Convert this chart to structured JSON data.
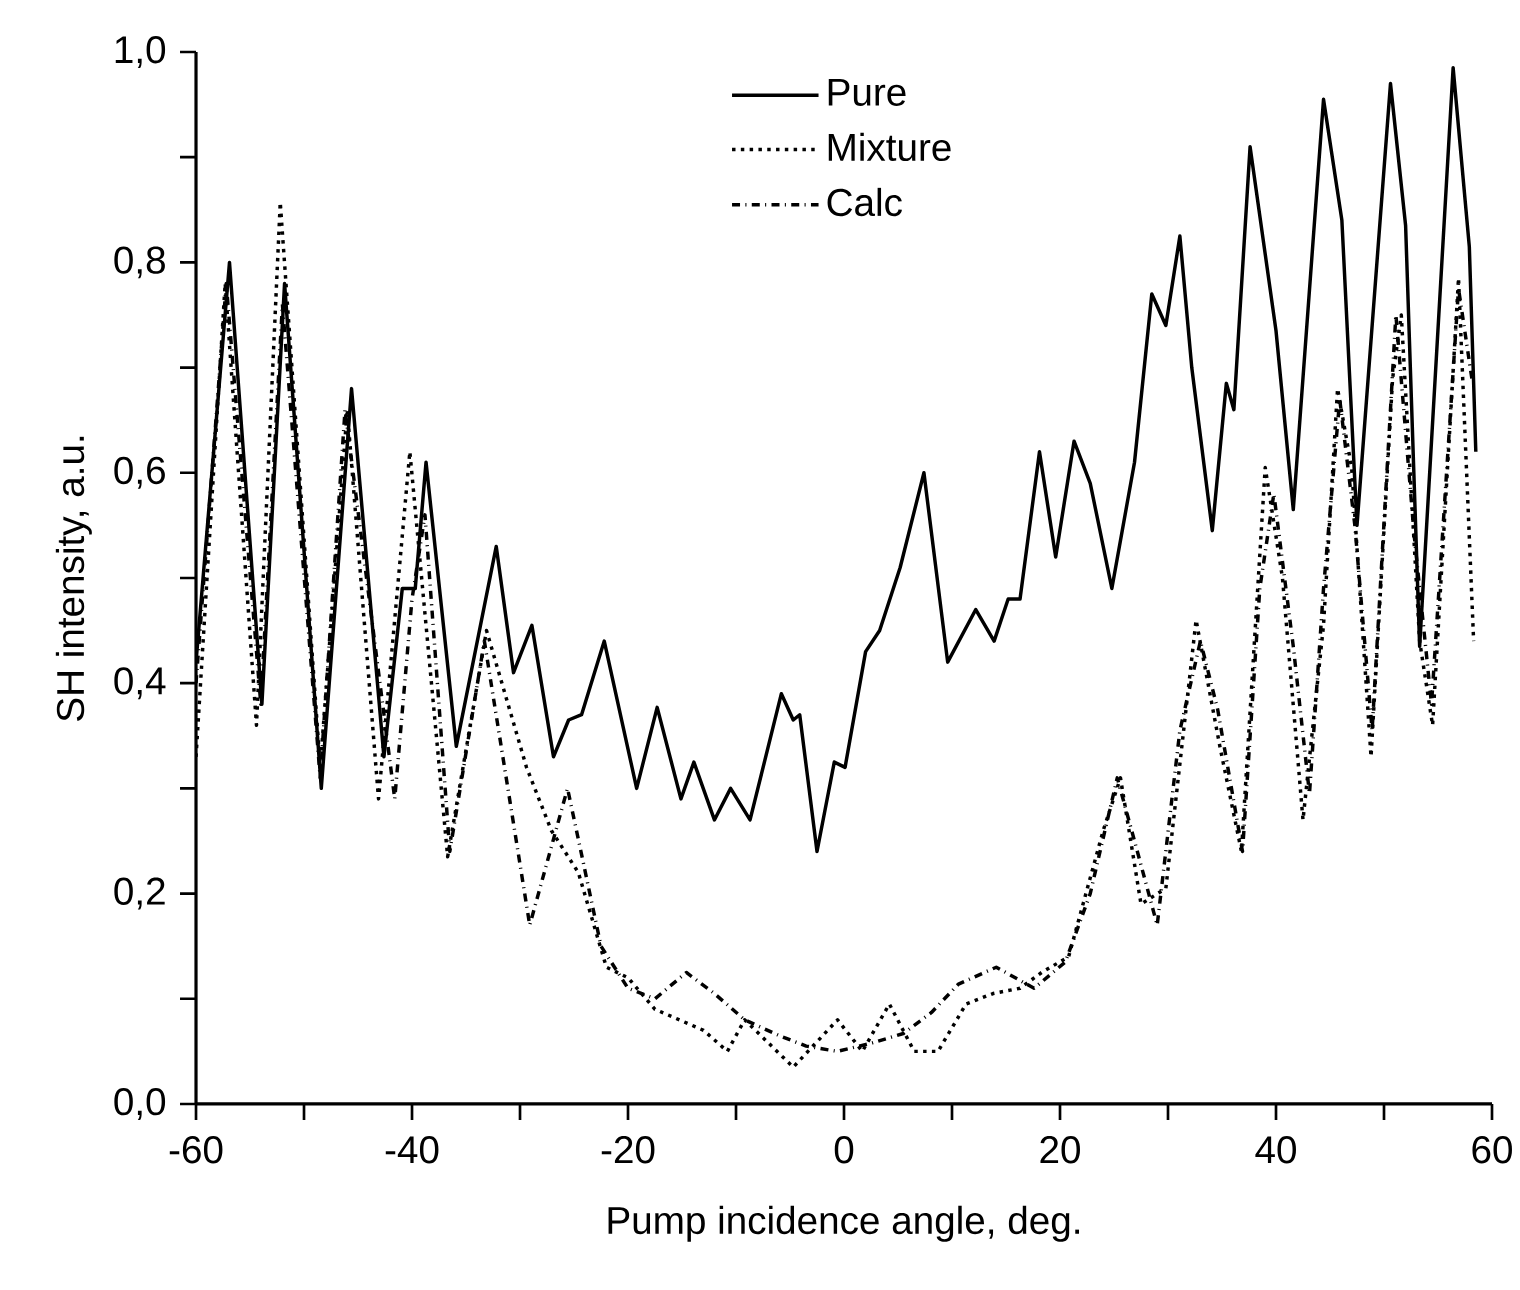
{
  "chart_data": {
    "type": "line",
    "xlabel": "Pump incidence angle, deg.",
    "ylabel": "SH intensity, a.u.",
    "xlim": [
      -60,
      60
    ],
    "ylim": [
      0,
      1
    ],
    "xticks": [
      -60,
      {
        "value": -50,
        "label": null
      },
      -40,
      {
        "value": -30,
        "label": null
      },
      -20,
      {
        "value": -10,
        "label": null
      },
      0,
      {
        "value": 10,
        "label": null
      },
      20,
      {
        "value": 30,
        "label": null
      },
      40,
      {
        "value": 50,
        "label": null
      },
      60
    ],
    "yticks": [
      {
        "value": 0,
        "label": "0,0"
      },
      {
        "value": 0.1,
        "label": null
      },
      {
        "value": 0.2,
        "label": "0,2"
      },
      {
        "value": 0.3,
        "label": null
      },
      {
        "value": 0.4,
        "label": "0,4"
      },
      {
        "value": 0.5,
        "label": null
      },
      {
        "value": 0.6,
        "label": "0,6"
      },
      {
        "value": 0.7,
        "label": null
      },
      {
        "value": 0.8,
        "label": "0,8"
      },
      {
        "value": 0.9,
        "label": null
      },
      {
        "value": 1.0,
        "label": "1,0"
      }
    ],
    "legend": "top",
    "grid": false,
    "marker": "none",
    "series": [
      {
        "name": "Pure",
        "color": "#000000",
        "line_style": "solid",
        "x": [
          -60,
          -56.9,
          -53.9,
          -51.8,
          -48.4,
          -45.6,
          -42.6,
          -40.9,
          -39.7,
          -38.7,
          -35.9,
          -32.2,
          -30.6,
          -28.9,
          -26.9,
          -25.5,
          -24.3,
          -22.2,
          -19.2,
          -17.3,
          -15.1,
          -13.9,
          -12.0,
          -10.5,
          -8.7,
          -5.8,
          -4.7,
          -4.1,
          -2.5,
          -0.9,
          0.1,
          2.0,
          3.3,
          5.2,
          7.4,
          9.6,
          12.2,
          13.9,
          15.2,
          16.3,
          18.1,
          19.6,
          21.3,
          22.8,
          24.8,
          26.9,
          28.5,
          29.8,
          31.1,
          32.2,
          34.1,
          35.4,
          36.1,
          37.6,
          40.0,
          41.6,
          44.4,
          46.1,
          47.5,
          50.6,
          52.0,
          53.3,
          56.4,
          57.9,
          58.5
        ],
        "values": [
          0.42,
          0.8,
          0.38,
          0.78,
          0.3,
          0.68,
          0.33,
          0.49,
          0.49,
          0.61,
          0.34,
          0.53,
          0.41,
          0.455,
          0.33,
          0.365,
          0.37,
          0.44,
          0.3,
          0.377,
          0.29,
          0.325,
          0.27,
          0.3,
          0.27,
          0.39,
          0.365,
          0.37,
          0.24,
          0.325,
          0.32,
          0.43,
          0.45,
          0.51,
          0.6,
          0.42,
          0.47,
          0.44,
          0.48,
          0.48,
          0.62,
          0.52,
          0.63,
          0.59,
          0.49,
          0.61,
          0.77,
          0.74,
          0.825,
          0.7,
          0.545,
          0.685,
          0.66,
          0.91,
          0.735,
          0.565,
          0.955,
          0.84,
          0.55,
          0.97,
          0.835,
          0.435,
          0.985,
          0.815,
          0.62
        ]
      },
      {
        "name": "Mixture",
        "color": "#000000",
        "line_style": "dotted",
        "x": [
          -60,
          -57.3,
          -54.4,
          -52.2,
          -48.5,
          -46.0,
          -43.1,
          -40.2,
          -36.7,
          -33.1,
          -29.4,
          -27.1,
          -24.6,
          -22.0,
          -20.0,
          -17.5,
          -13.0,
          -10.8,
          -9.2,
          -4.7,
          -0.6,
          1.7,
          4.2,
          6.5,
          8.7,
          11.3,
          13.8,
          16.3,
          18.3,
          20.8,
          24.0,
          25.6,
          27.5,
          29.8,
          32.6,
          34.8,
          36.8,
          39.0,
          40.6,
          42.5,
          44.4,
          45.7,
          47.0,
          48.8,
          50.8,
          51.6,
          53.3,
          54.5,
          56.9,
          58.3
        ],
        "values": [
          0.33,
          0.78,
          0.36,
          0.857,
          0.32,
          0.66,
          0.29,
          0.62,
          0.235,
          0.45,
          0.32,
          0.26,
          0.22,
          0.13,
          0.12,
          0.09,
          0.07,
          0.05,
          0.08,
          0.035,
          0.08,
          0.05,
          0.095,
          0.05,
          0.05,
          0.095,
          0.105,
          0.11,
          0.125,
          0.14,
          0.26,
          0.31,
          0.19,
          0.205,
          0.46,
          0.34,
          0.24,
          0.605,
          0.5,
          0.27,
          0.455,
          0.68,
          0.605,
          0.33,
          0.69,
          0.75,
          0.44,
          0.36,
          0.785,
          0.44
        ]
      },
      {
        "name": "Calc",
        "color": "#000000",
        "line_style": "dashdot",
        "x": [
          -60,
          -57.2,
          -54.0,
          -52.0,
          -48.5,
          -46.2,
          -41.6,
          -40.0,
          -38.8,
          -36.5,
          -33.3,
          -29.1,
          -25.6,
          -22.5,
          -20.0,
          -17.5,
          -14.6,
          -12.0,
          -9.2,
          -6.0,
          -3.5,
          -0.6,
          2.6,
          5.5,
          8.1,
          10.6,
          14.1,
          17.6,
          20.5,
          22.8,
          25.3,
          26.9,
          29.0,
          31.1,
          33.0,
          34.6,
          36.9,
          38.5,
          39.8,
          41.6,
          43.1,
          44.4,
          45.9,
          47.3,
          48.9,
          51.1,
          52.8,
          54.4,
          56.9,
          58.2
        ],
        "values": [
          0.4,
          0.78,
          0.38,
          0.76,
          0.31,
          0.66,
          0.29,
          0.48,
          0.56,
          0.24,
          0.44,
          0.17,
          0.3,
          0.15,
          0.11,
          0.1,
          0.125,
          0.105,
          0.08,
          0.065,
          0.055,
          0.05,
          0.058,
          0.067,
          0.087,
          0.114,
          0.13,
          0.11,
          0.135,
          0.2,
          0.31,
          0.25,
          0.17,
          0.355,
          0.44,
          0.375,
          0.24,
          0.49,
          0.58,
          0.435,
          0.295,
          0.49,
          0.67,
          0.55,
          0.355,
          0.75,
          0.54,
          0.38,
          0.775,
          0.685
        ]
      }
    ]
  }
}
